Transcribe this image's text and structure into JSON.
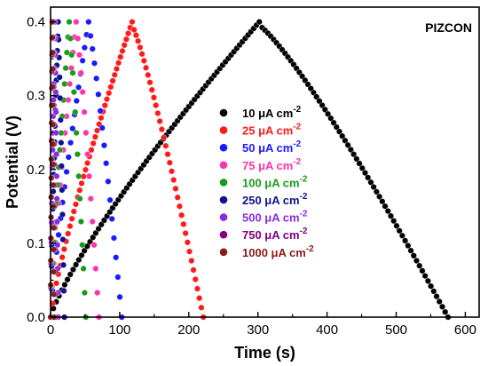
{
  "chart_data": {
    "type": "scatter",
    "title": "",
    "annotation": "PIZCON",
    "xlabel": "Time (s)",
    "ylabel": "Potential (V)",
    "xlim": [
      0,
      620
    ],
    "ylim": [
      0,
      0.42
    ],
    "xticks": [
      0,
      100,
      200,
      300,
      400,
      500,
      600
    ],
    "yticks": [
      0.0,
      0.1,
      0.2,
      0.3,
      0.4
    ],
    "ytick_labels": [
      "0.0",
      "0.1",
      "0.2",
      "0.3",
      "0.4"
    ],
    "legend_position": "center-right",
    "series": [
      {
        "name": "10 μA cm-2",
        "legend_main": "10 μA cm",
        "legend_sup": "-2",
        "color": "#000000",
        "ir_drop": 0.005,
        "x": [
          0,
          302,
          575
        ],
        "y": [
          0.0,
          0.4,
          0.0
        ]
      },
      {
        "name": "25 μA cm-2",
        "legend_main": "25 μA cm",
        "legend_sup": "-2",
        "color": "#ff1a1a",
        "ir_drop": 0.005,
        "x": [
          0,
          118,
          221
        ],
        "y": [
          0.0,
          0.4,
          0.0
        ]
      },
      {
        "name": "50 μA cm-2",
        "legend_main": "50 μA cm",
        "legend_sup": "-2",
        "color": "#1a1aff",
        "ir_drop": 0.005,
        "x": [
          0,
          55,
          103
        ],
        "y": [
          0.0,
          0.4,
          0.0
        ]
      },
      {
        "name": "75 μA cm-2",
        "legend_main": "75 μA cm",
        "legend_sup": "-2",
        "color": "#ff33aa",
        "ir_drop": 0.005,
        "x": [
          0,
          37,
          70
        ],
        "y": [
          0.0,
          0.4,
          0.0
        ]
      },
      {
        "name": "100 μA cm-2",
        "legend_main": "100 μA cm",
        "legend_sup": "-2",
        "color": "#1a9a1a",
        "ir_drop": 0.005,
        "x": [
          0,
          27,
          51
        ],
        "y": [
          0.0,
          0.4,
          0.0
        ]
      },
      {
        "name": "250 μA cm-2",
        "legend_main": "250 μA cm",
        "legend_sup": "-2",
        "color": "#101090",
        "ir_drop": 0.005,
        "x": [
          0,
          11,
          20
        ],
        "y": [
          0.0,
          0.4,
          0.0
        ]
      },
      {
        "name": "500 μA cm-2",
        "legend_main": "500 μA cm",
        "legend_sup": "-2",
        "color": "#8a2be2",
        "ir_drop": 0.005,
        "x": [
          0,
          6,
          11
        ],
        "y": [
          0.0,
          0.4,
          0.0
        ]
      },
      {
        "name": "750 μA cm-2",
        "legend_main": "750 μA cm",
        "legend_sup": "-2",
        "color": "#800080",
        "ir_drop": 0.005,
        "x": [
          0,
          3.5,
          7
        ],
        "y": [
          0.0,
          0.4,
          0.0
        ]
      },
      {
        "name": "1000 μA cm-2",
        "legend_main": "1000 μA cm",
        "legend_sup": "-2",
        "color": "#8b1a1a",
        "ir_drop": 0.005,
        "x": [
          0,
          2.5,
          5
        ],
        "y": [
          0.0,
          0.4,
          0.0
        ]
      }
    ]
  }
}
